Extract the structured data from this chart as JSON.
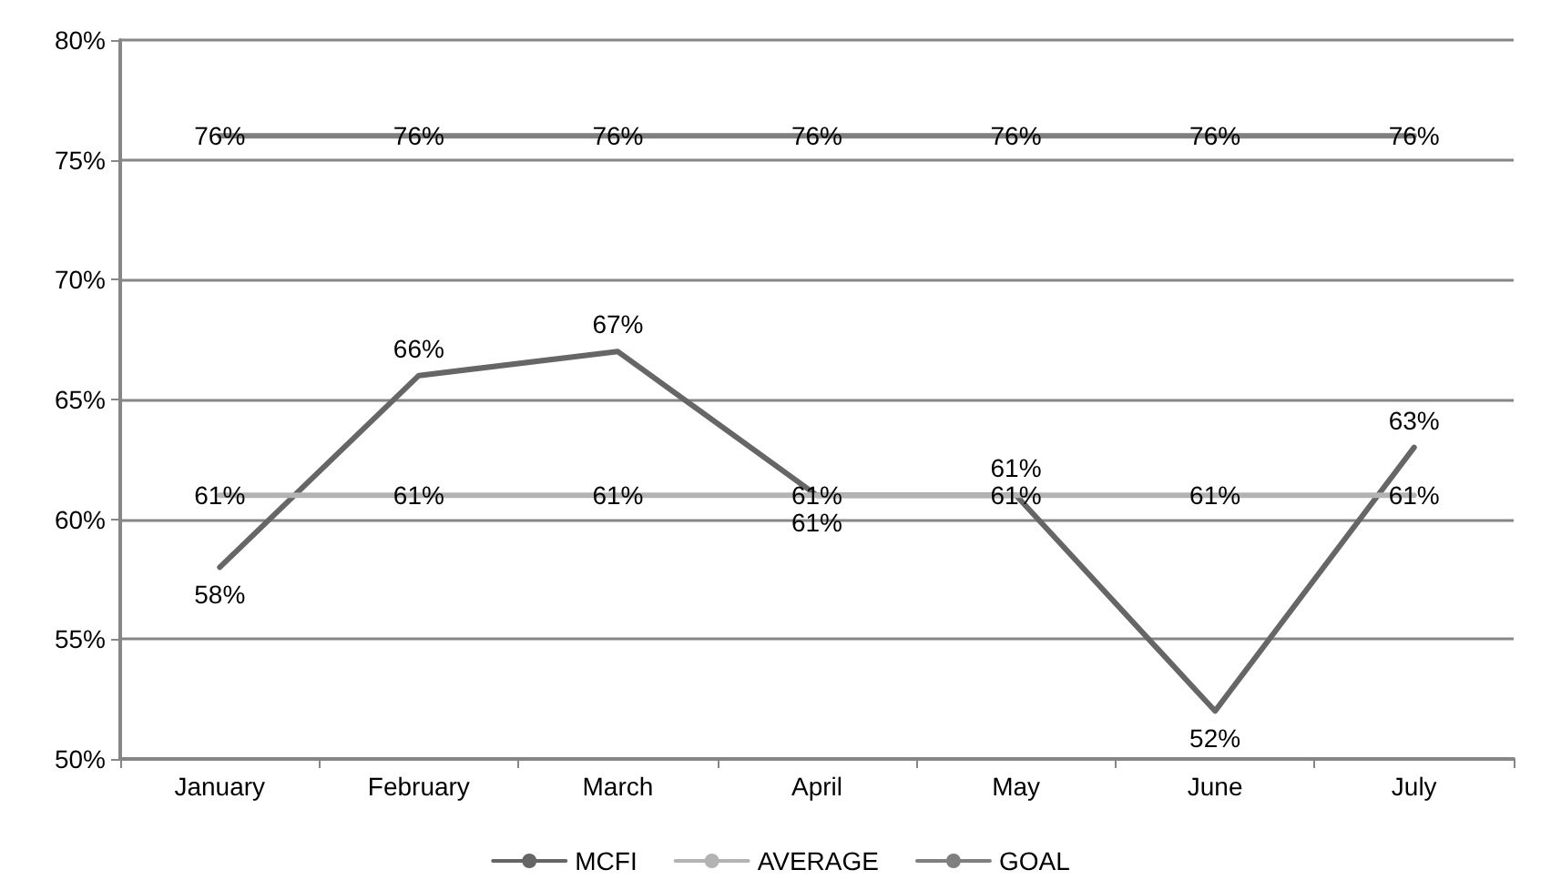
{
  "chart_data": {
    "type": "line",
    "categories": [
      "January",
      "February",
      "March",
      "April",
      "May",
      "June",
      "July"
    ],
    "series": [
      {
        "name": "MCFI",
        "color": "#666666",
        "values": [
          58,
          66,
          67,
          61,
          61,
          52,
          63
        ],
        "value_labels": [
          "58%",
          "66%",
          "67%",
          "61%",
          "61%",
          "52%",
          "63%"
        ]
      },
      {
        "name": "AVERAGE",
        "color": "#b3b3b3",
        "values": [
          61,
          61,
          61,
          61,
          61,
          61,
          61
        ],
        "value_labels": [
          "61%",
          "61%",
          "61%",
          "61%",
          "61%",
          "61%",
          "61%"
        ]
      },
      {
        "name": "GOAL",
        "color": "#7f7f7f",
        "values": [
          76,
          76,
          76,
          76,
          76,
          76,
          76
        ],
        "value_labels": [
          "76%",
          "76%",
          "76%",
          "76%",
          "76%",
          "76%",
          "76%"
        ]
      }
    ],
    "ylim": [
      50,
      80
    ],
    "yticks": [
      {
        "value": 50,
        "label": "50%"
      },
      {
        "value": 55,
        "label": "55%"
      },
      {
        "value": 60,
        "label": "60%"
      },
      {
        "value": 65,
        "label": "65%"
      },
      {
        "value": 70,
        "label": "70%"
      },
      {
        "value": 75,
        "label": "75%"
      },
      {
        "value": 80,
        "label": "80%"
      }
    ],
    "grid": "y",
    "legend": "bottom",
    "marker": "none",
    "line_style": "solid"
  }
}
